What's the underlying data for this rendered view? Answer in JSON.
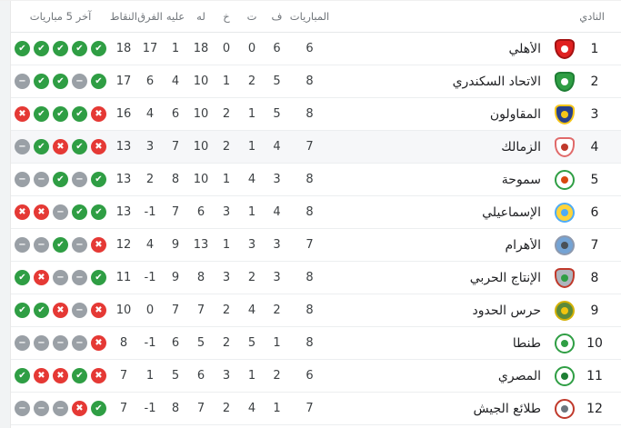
{
  "colors": {
    "win": "#2f9e44",
    "loss": "#e53935",
    "draw": "#9aa0a6",
    "row_highlight": "#f6f7f9",
    "separator": "#eceef0",
    "header_text": "#70757a",
    "body_text": "#202124",
    "scrollbar_track": "#f1f3f4"
  },
  "result_icons": {
    "W": {
      "name": "win-check-icon",
      "color": "#2f9e44",
      "glyph": "✔"
    },
    "L": {
      "name": "loss-cross-icon",
      "color": "#e53935",
      "glyph": "✖"
    },
    "D": {
      "name": "draw-minus-icon",
      "color": "#9aa0a6",
      "glyph": "−"
    }
  },
  "table": {
    "headers": {
      "club": "النادي",
      "played": "المباريات",
      "wins": "ف",
      "draws": "ت",
      "losses": "خ",
      "goals_for": "له",
      "goals_against": "عليه",
      "goal_diff": "الفرق",
      "points": "النقاط",
      "last5": "آخر 5 مباريات"
    },
    "rows": [
      {
        "rank": 1,
        "club": "الأهلي",
        "played": 6,
        "wins": 6,
        "draws": 0,
        "losses": 0,
        "gf": 18,
        "ga": 1,
        "diff": 17,
        "points": 18,
        "last5": [
          "W",
          "W",
          "W",
          "W",
          "W"
        ],
        "highlighted": false,
        "logo": {
          "type": "shield",
          "bg": "#e02020",
          "ring": "#a31212",
          "inner": "#ffffff"
        }
      },
      {
        "rank": 2,
        "club": "الاتحاد السكندري",
        "played": 8,
        "wins": 5,
        "draws": 2,
        "losses": 1,
        "gf": 10,
        "ga": 4,
        "diff": 6,
        "points": 17,
        "last5": [
          "D",
          "W",
          "W",
          "D",
          "W"
        ],
        "highlighted": false,
        "logo": {
          "type": "shield",
          "bg": "#2f9e44",
          "ring": "#1e7e34",
          "inner": "#ffffff"
        }
      },
      {
        "rank": 3,
        "club": "المقاولون",
        "played": 8,
        "wins": 5,
        "draws": 1,
        "losses": 2,
        "gf": 10,
        "ga": 6,
        "diff": 4,
        "points": 16,
        "last5": [
          "L",
          "W",
          "W",
          "W",
          "L"
        ],
        "highlighted": false,
        "logo": {
          "type": "shield",
          "bg": "#27408b",
          "ring": "#f5c518",
          "inner": "#f5c518"
        }
      },
      {
        "rank": 4,
        "club": "الزمالك",
        "played": 7,
        "wins": 4,
        "draws": 1,
        "losses": 2,
        "gf": 10,
        "ga": 7,
        "diff": 3,
        "points": 13,
        "last5": [
          "D",
          "W",
          "L",
          "W",
          "L"
        ],
        "highlighted": true,
        "logo": {
          "type": "shield",
          "bg": "#ffffff",
          "ring": "#e06a6a",
          "inner": "#c0392b"
        }
      },
      {
        "rank": 5,
        "club": "سموحة",
        "played": 8,
        "wins": 3,
        "draws": 4,
        "losses": 1,
        "gf": 10,
        "ga": 8,
        "diff": 2,
        "points": 13,
        "last5": [
          "D",
          "D",
          "W",
          "D",
          "W"
        ],
        "highlighted": false,
        "logo": {
          "type": "circle",
          "bg": "#ffffff",
          "ring": "#2f9e44",
          "inner": "#d9480f"
        }
      },
      {
        "rank": 6,
        "club": "الإسماعيلي",
        "played": 8,
        "wins": 4,
        "draws": 1,
        "losses": 3,
        "gf": 6,
        "ga": 7,
        "diff": -1,
        "points": 13,
        "last5": [
          "L",
          "L",
          "D",
          "W",
          "W"
        ],
        "highlighted": false,
        "logo": {
          "type": "circle",
          "bg": "#ffd43b",
          "ring": "#4dabf7",
          "inner": "#4dabf7"
        }
      },
      {
        "rank": 7,
        "club": "الأهرام",
        "played": 7,
        "wins": 3,
        "draws": 3,
        "losses": 1,
        "gf": 13,
        "ga": 9,
        "diff": 4,
        "points": 12,
        "last5": [
          "D",
          "D",
          "W",
          "D",
          "L"
        ],
        "highlighted": false,
        "logo": {
          "type": "circle",
          "bg": "#74a3d4",
          "ring": "#8d99ae",
          "inner": "#495057"
        }
      },
      {
        "rank": 8,
        "club": "الإنتاج الحربي",
        "played": 8,
        "wins": 3,
        "draws": 2,
        "losses": 3,
        "gf": 8,
        "ga": 9,
        "diff": -1,
        "points": 11,
        "last5": [
          "W",
          "L",
          "D",
          "D",
          "W"
        ],
        "highlighted": false,
        "logo": {
          "type": "shield",
          "bg": "#adb5bd",
          "ring": "#c0392b",
          "inner": "#2f9e44"
        }
      },
      {
        "rank": 9,
        "club": "حرس الحدود",
        "played": 8,
        "wins": 2,
        "draws": 4,
        "losses": 2,
        "gf": 7,
        "ga": 7,
        "diff": 0,
        "points": 10,
        "last5": [
          "W",
          "W",
          "L",
          "D",
          "L"
        ],
        "highlighted": false,
        "logo": {
          "type": "circle",
          "bg": "#5c8a3a",
          "ring": "#d4b106",
          "inner": "#f1c40f"
        }
      },
      {
        "rank": 10,
        "club": "طنطا",
        "played": 8,
        "wins": 1,
        "draws": 5,
        "losses": 2,
        "gf": 5,
        "ga": 6,
        "diff": -1,
        "points": 8,
        "last5": [
          "D",
          "D",
          "D",
          "D",
          "L"
        ],
        "highlighted": false,
        "logo": {
          "type": "circle",
          "bg": "#ffffff",
          "ring": "#2f9e44",
          "inner": "#2f9e44"
        }
      },
      {
        "rank": 11,
        "club": "المصري",
        "played": 6,
        "wins": 2,
        "draws": 1,
        "losses": 3,
        "gf": 6,
        "ga": 5,
        "diff": 1,
        "points": 7,
        "last5": [
          "W",
          "L",
          "L",
          "W",
          "L"
        ],
        "highlighted": false,
        "logo": {
          "type": "circle",
          "bg": "#ffffff",
          "ring": "#2f9e44",
          "inner": "#1e7e34"
        }
      },
      {
        "rank": 12,
        "club": "طلائع الجيش",
        "played": 7,
        "wins": 1,
        "draws": 4,
        "losses": 2,
        "gf": 7,
        "ga": 8,
        "diff": -1,
        "points": 7,
        "last5": [
          "D",
          "D",
          "D",
          "L",
          "W"
        ],
        "highlighted": false,
        "logo": {
          "type": "circle",
          "bg": "#ffffff",
          "ring": "#c0392b",
          "inner": "#6c757d"
        }
      }
    ]
  }
}
